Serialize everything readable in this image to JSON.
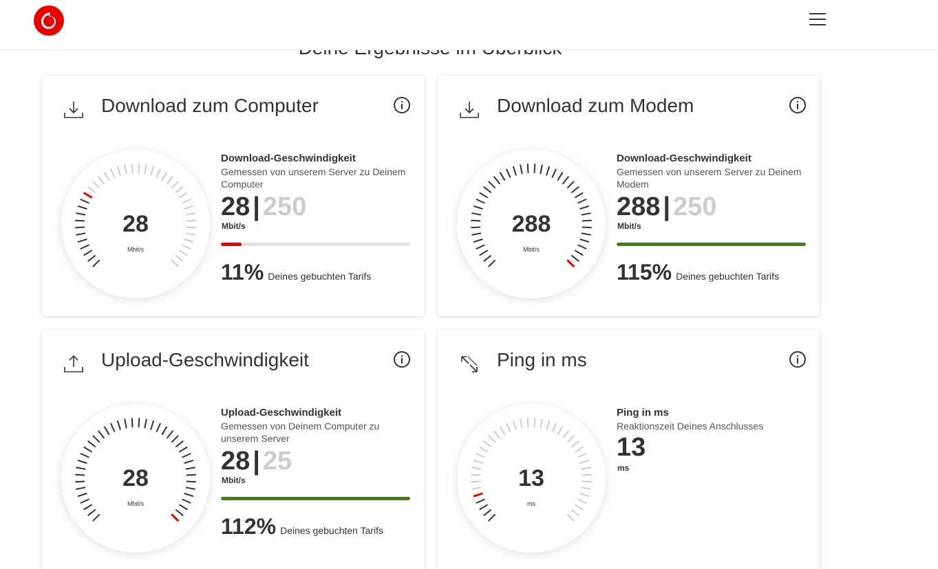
{
  "header": {
    "logo_icon": "vodafone-logo-icon",
    "menu_icon": "hamburger-menu-icon",
    "brand_color": "#e60000"
  },
  "overview_title": "Deine Ergebnisse im Überblick",
  "cards": [
    {
      "title": "Download zum Computer",
      "icon": "download-icon",
      "metric_title": "Download-Geschwindigkeit",
      "metric_sub": "Gemessen von unserem Server zu Deinem Computer",
      "value": "28",
      "separator": "|",
      "target": "250",
      "unit": "Mbit/s",
      "percent": "11%",
      "percent_label": "Deines gebuchten Tarifs",
      "fill_fraction": 0.11,
      "gauge_fraction": 0.28,
      "bar_color": "#e60000"
    },
    {
      "title": "Download zum Modem",
      "icon": "download-icon",
      "metric_title": "Download-Geschwindigkeit",
      "metric_sub": "Gemessen von unserem Server zu Deinem Modem",
      "value": "288",
      "separator": "|",
      "target": "250",
      "unit": "Mbit/s",
      "percent": "115%",
      "percent_label": "Deines gebuchten Tarifs",
      "fill_fraction": 1.0,
      "gauge_fraction": 1.0,
      "bar_color": "#4a7c10"
    },
    {
      "title": "Upload-Geschwindigkeit",
      "icon": "upload-icon",
      "metric_title": "Upload-Geschwindigkeit",
      "metric_sub": "Gemessen von Deinem Computer zu unserem Server",
      "value": "28",
      "separator": "|",
      "target": "25",
      "unit": "Mbit/s",
      "percent": "112%",
      "percent_label": "Deines gebuchten Tarifs",
      "fill_fraction": 1.0,
      "gauge_fraction": 1.0,
      "bar_color": "#4a7c10"
    },
    {
      "title": "Ping in ms",
      "icon": "ping-arrows-icon",
      "metric_title": "Ping in ms",
      "metric_sub": "Reaktionszeit Deines Anschlusses",
      "value": "13",
      "unit": "ms",
      "gauge_fraction": 0.1,
      "bar_color": "#e60000"
    }
  ],
  "colors": {
    "tick_active": "#333333",
    "tick_inactive": "#cccccc",
    "needle": "#e60000",
    "target_text": "#cccccc"
  }
}
